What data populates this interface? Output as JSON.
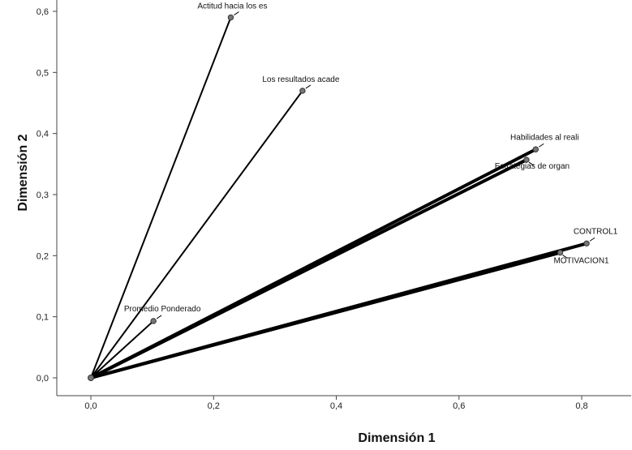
{
  "chart_data": {
    "type": "vector-biplot",
    "xlabel": "Dimensión 1",
    "ylabel": "Dimensión 2",
    "xlim": [
      -0.05,
      0.88
    ],
    "ylim": [
      -0.033,
      0.605
    ],
    "xticks": [
      0.0,
      0.2,
      0.4,
      0.6,
      0.8
    ],
    "xtick_labels": [
      "0,0",
      "0,2",
      "0,4",
      "0,6",
      "0,8"
    ],
    "yticks": [
      0.0,
      0.1,
      0.2,
      0.3,
      0.4,
      0.5,
      0.6
    ],
    "ytick_labels": [
      "0,0",
      "0,1",
      "0,2",
      "0,3",
      "0,4",
      "0,5",
      "0,6"
    ],
    "grid": false,
    "origin": {
      "x": 0.0,
      "y": 0.0
    },
    "points": [
      {
        "label": "Actitud hacia los es",
        "x": 0.228,
        "y": 0.59,
        "weight": 2
      },
      {
        "label": "Los resultados acade",
        "x": 0.345,
        "y": 0.47,
        "weight": 2
      },
      {
        "label": "Habilidades al reali",
        "x": 0.725,
        "y": 0.374,
        "weight": 4
      },
      {
        "label": "Estrategias de organ",
        "x": 0.71,
        "y": 0.357,
        "weight": 4
      },
      {
        "label": "CONTROL1",
        "x": 0.808,
        "y": 0.22,
        "weight": 4
      },
      {
        "label": "MOTIVACION1",
        "x": 0.765,
        "y": 0.205,
        "weight": 4
      },
      {
        "label": "Promedio Ponderado",
        "x": 0.102,
        "y": 0.093,
        "weight": 2
      }
    ]
  }
}
